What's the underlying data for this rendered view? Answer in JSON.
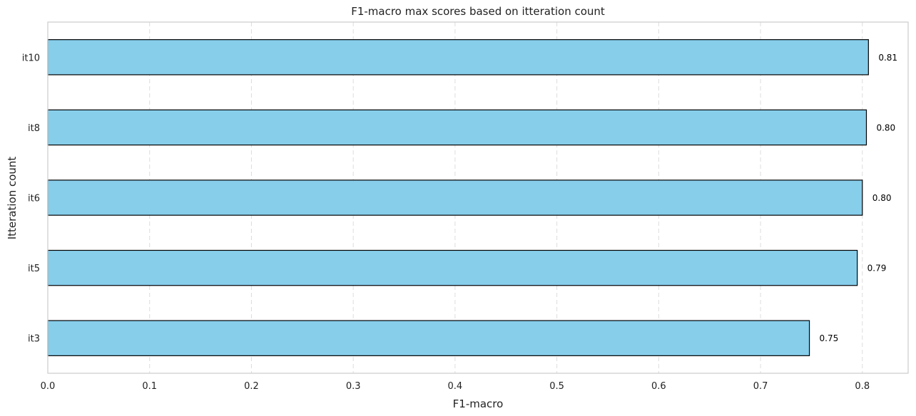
{
  "chart_data": {
    "type": "bar",
    "orientation": "horizontal",
    "title": "F1-macro max scores based on itteration count",
    "xlabel": "F1-macro",
    "ylabel": "Itteration count",
    "categories": [
      "it10",
      "it8",
      "it6",
      "it5",
      "it3"
    ],
    "values": [
      0.806,
      0.804,
      0.8,
      0.795,
      0.748
    ],
    "data_labels": [
      "0.81",
      "0.80",
      "0.80",
      "0.79",
      "0.75"
    ],
    "xlim": [
      0,
      0.845
    ],
    "xticks": [
      0.0,
      0.1,
      0.2,
      0.3,
      0.4,
      0.5,
      0.6,
      0.7,
      0.8
    ],
    "xtick_labels": [
      "0.0",
      "0.1",
      "0.2",
      "0.3",
      "0.4",
      "0.5",
      "0.6",
      "0.7",
      "0.8"
    ],
    "grid": "x-dashed",
    "colors": {
      "bar_fill": "#87ceeb",
      "bar_edge": "#000000",
      "grid": "#dddddd",
      "axes": "#cccccc",
      "text": "#222222"
    }
  }
}
